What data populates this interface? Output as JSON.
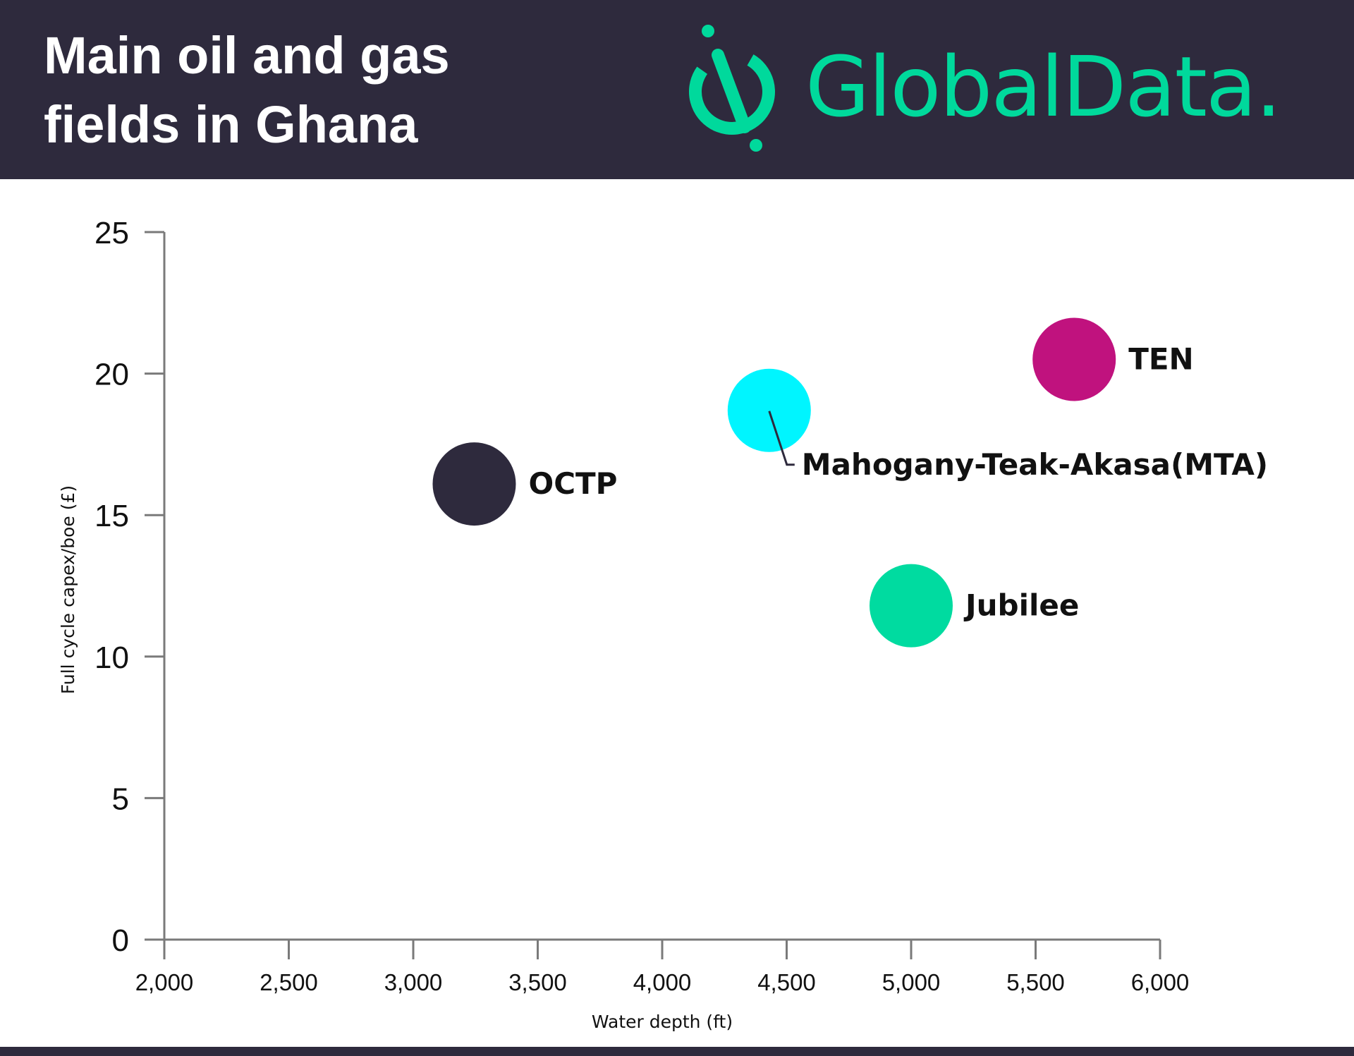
{
  "header": {
    "title_line1": "Main oil and gas",
    "title_line2": "fields in Ghana",
    "logo_text": "GlobalData."
  },
  "colors": {
    "header_bg": "#2e2a3d",
    "logo": "#00d99c",
    "axis": "#7a7a7a"
  },
  "chart_data": {
    "type": "scatter",
    "xlabel": "Water depth (ft)",
    "ylabel": "Full cycle capex/boe (£)",
    "xlim": [
      2000,
      6000
    ],
    "ylim": [
      0,
      25
    ],
    "x_ticks": [
      2000,
      2500,
      3000,
      3500,
      4000,
      4500,
      5000,
      5500,
      6000
    ],
    "x_tick_labels": [
      "2,000",
      "2,500",
      "3,000",
      "3,500",
      "4,000",
      "4,500",
      "5,000",
      "5,500",
      "6,000"
    ],
    "y_ticks": [
      0,
      5,
      10,
      15,
      20,
      25
    ],
    "y_tick_labels": [
      "0",
      "5",
      "10",
      "15",
      "20",
      "25"
    ],
    "grid": false,
    "points": [
      {
        "name": "OCTP",
        "x": 3245,
        "y": 16.1,
        "color": "#2e2a3d"
      },
      {
        "name": "Mahogany-Teak-Akasa(MTA)",
        "x": 4430,
        "y": 18.7,
        "color": "#00f5ff"
      },
      {
        "name": "TEN",
        "x": 5655,
        "y": 20.5,
        "color": "#c0127e"
      },
      {
        "name": "Jubilee",
        "x": 5000,
        "y": 11.8,
        "color": "#00dba0"
      }
    ]
  }
}
